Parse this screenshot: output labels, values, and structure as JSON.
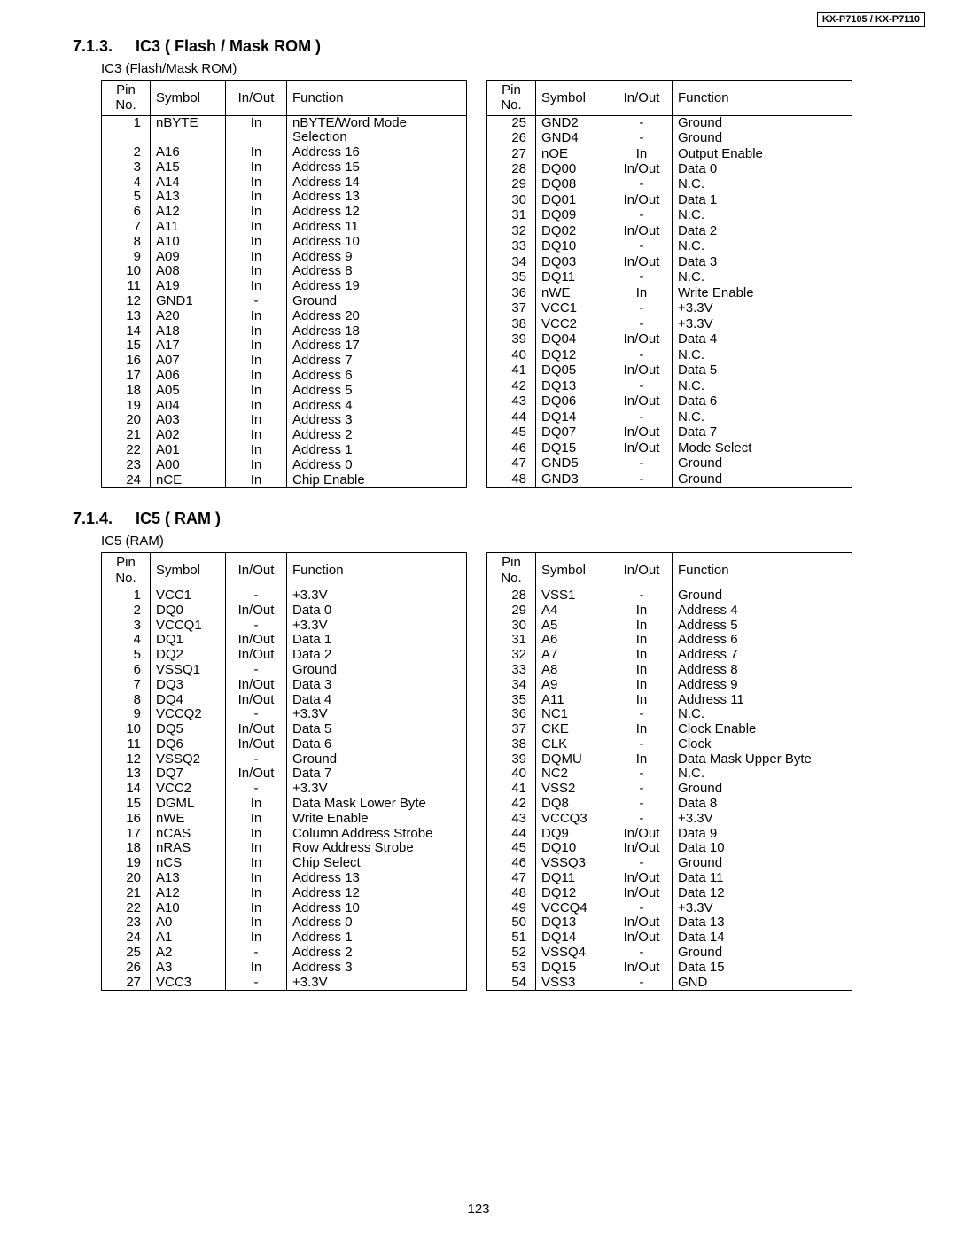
{
  "header_box": "KX-P7105 / KX-P7110",
  "page_number": "123",
  "section1": {
    "number": "7.1.3.",
    "title": "IC3 ( Flash / Mask ROM )",
    "sublabel": "IC3 (Flash/Mask ROM)",
    "headers": {
      "pin": "Pin\nNo.",
      "symbol": "Symbol",
      "inout": "In/Out",
      "func": "Function"
    },
    "left": [
      {
        "pin": "1",
        "symbol": "nBYTE",
        "inout": "In",
        "func": "nBYTE/Word Mode Selection"
      },
      {
        "pin": "2",
        "symbol": "A16",
        "inout": "In",
        "func": "Address 16"
      },
      {
        "pin": "3",
        "symbol": "A15",
        "inout": "In",
        "func": "Address 15"
      },
      {
        "pin": "4",
        "symbol": "A14",
        "inout": "In",
        "func": "Address 14"
      },
      {
        "pin": "5",
        "symbol": "A13",
        "inout": "In",
        "func": "Address 13"
      },
      {
        "pin": "6",
        "symbol": "A12",
        "inout": "In",
        "func": "Address 12"
      },
      {
        "pin": "7",
        "symbol": "A11",
        "inout": "In",
        "func": "Address 11"
      },
      {
        "pin": "8",
        "symbol": "A10",
        "inout": "In",
        "func": "Address 10"
      },
      {
        "pin": "9",
        "symbol": "A09",
        "inout": "In",
        "func": "Address 9"
      },
      {
        "pin": "10",
        "symbol": "A08",
        "inout": "In",
        "func": "Address 8"
      },
      {
        "pin": "11",
        "symbol": "A19",
        "inout": "In",
        "func": "Address 19"
      },
      {
        "pin": "12",
        "symbol": "GND1",
        "inout": "-",
        "func": "Ground"
      },
      {
        "pin": "13",
        "symbol": "A20",
        "inout": "In",
        "func": "Address 20"
      },
      {
        "pin": "14",
        "symbol": "A18",
        "inout": "In",
        "func": "Address 18"
      },
      {
        "pin": "15",
        "symbol": "A17",
        "inout": "In",
        "func": "Address 17"
      },
      {
        "pin": "16",
        "symbol": "A07",
        "inout": "In",
        "func": "Address 7"
      },
      {
        "pin": "17",
        "symbol": "A06",
        "inout": "In",
        "func": "Address 6"
      },
      {
        "pin": "18",
        "symbol": "A05",
        "inout": "In",
        "func": "Address 5"
      },
      {
        "pin": "19",
        "symbol": "A04",
        "inout": "In",
        "func": "Address 4"
      },
      {
        "pin": "20",
        "symbol": "A03",
        "inout": "In",
        "func": "Address 3"
      },
      {
        "pin": "21",
        "symbol": "A02",
        "inout": "In",
        "func": "Address 2"
      },
      {
        "pin": "22",
        "symbol": "A01",
        "inout": "In",
        "func": "Address 1"
      },
      {
        "pin": "23",
        "symbol": "A00",
        "inout": "In",
        "func": "Address 0"
      },
      {
        "pin": "24",
        "symbol": "nCE",
        "inout": "In",
        "func": "Chip Enable"
      }
    ],
    "right": [
      {
        "pin": "25",
        "symbol": "GND2",
        "inout": "-",
        "func": "Ground"
      },
      {
        "pin": "26",
        "symbol": "GND4",
        "inout": "-",
        "func": "Ground"
      },
      {
        "pin": "27",
        "symbol": "nOE",
        "inout": "In",
        "func": "Output Enable"
      },
      {
        "pin": "28",
        "symbol": "DQ00",
        "inout": "In/Out",
        "func": "Data 0"
      },
      {
        "pin": "29",
        "symbol": "DQ08",
        "inout": "-",
        "func": "N.C."
      },
      {
        "pin": "30",
        "symbol": "DQ01",
        "inout": "In/Out",
        "func": "Data 1"
      },
      {
        "pin": "31",
        "symbol": "DQ09",
        "inout": "-",
        "func": "N.C."
      },
      {
        "pin": "32",
        "symbol": "DQ02",
        "inout": "In/Out",
        "func": "Data 2"
      },
      {
        "pin": "33",
        "symbol": "DQ10",
        "inout": "-",
        "func": "N.C."
      },
      {
        "pin": "34",
        "symbol": "DQ03",
        "inout": "In/Out",
        "func": "Data 3"
      },
      {
        "pin": "35",
        "symbol": "DQ11",
        "inout": "-",
        "func": "N.C."
      },
      {
        "pin": "36",
        "symbol": "nWE",
        "inout": "In",
        "func": "Write Enable"
      },
      {
        "pin": "37",
        "symbol": "VCC1",
        "inout": "-",
        "func": "+3.3V"
      },
      {
        "pin": "38",
        "symbol": "VCC2",
        "inout": "-",
        "func": "+3.3V"
      },
      {
        "pin": "39",
        "symbol": "DQ04",
        "inout": "In/Out",
        "func": "Data 4"
      },
      {
        "pin": "40",
        "symbol": "DQ12",
        "inout": "-",
        "func": "N.C."
      },
      {
        "pin": "41",
        "symbol": "DQ05",
        "inout": "In/Out",
        "func": "Data 5"
      },
      {
        "pin": "42",
        "symbol": "DQ13",
        "inout": "-",
        "func": "N.C."
      },
      {
        "pin": "43",
        "symbol": "DQ06",
        "inout": "In/Out",
        "func": "Data 6"
      },
      {
        "pin": "44",
        "symbol": "DQ14",
        "inout": "-",
        "func": "N.C."
      },
      {
        "pin": "45",
        "symbol": "DQ07",
        "inout": "In/Out",
        "func": "Data 7"
      },
      {
        "pin": "46",
        "symbol": "DQ15",
        "inout": "In/Out",
        "func": "Mode Select"
      },
      {
        "pin": "47",
        "symbol": "GND5",
        "inout": "-",
        "func": "Ground"
      },
      {
        "pin": "48",
        "symbol": "GND3",
        "inout": "-",
        "func": "Ground"
      }
    ]
  },
  "section2": {
    "number": "7.1.4.",
    "title": "IC5 ( RAM )",
    "sublabel": "IC5 (RAM)",
    "headers": {
      "pin": "Pin\nNo.",
      "symbol": "Symbol",
      "inout": "In/Out",
      "func": "Function"
    },
    "left": [
      {
        "pin": "1",
        "symbol": "VCC1",
        "inout": "-",
        "func": "+3.3V"
      },
      {
        "pin": "2",
        "symbol": "DQ0",
        "inout": "In/Out",
        "func": "Data 0"
      },
      {
        "pin": "3",
        "symbol": "VCCQ1",
        "inout": "-",
        "func": "+3.3V"
      },
      {
        "pin": "4",
        "symbol": "DQ1",
        "inout": "In/Out",
        "func": "Data 1"
      },
      {
        "pin": "5",
        "symbol": "DQ2",
        "inout": "In/Out",
        "func": "Data 2"
      },
      {
        "pin": "6",
        "symbol": "VSSQ1",
        "inout": "-",
        "func": "Ground"
      },
      {
        "pin": "7",
        "symbol": "DQ3",
        "inout": "In/Out",
        "func": "Data 3"
      },
      {
        "pin": "8",
        "symbol": "DQ4",
        "inout": "In/Out",
        "func": "Data 4"
      },
      {
        "pin": "9",
        "symbol": "VCCQ2",
        "inout": "-",
        "func": "+3.3V"
      },
      {
        "pin": "10",
        "symbol": "DQ5",
        "inout": "In/Out",
        "func": "Data 5"
      },
      {
        "pin": "11",
        "symbol": "DQ6",
        "inout": "In/Out",
        "func": "Data 6"
      },
      {
        "pin": "12",
        "symbol": "VSSQ2",
        "inout": "-",
        "func": "Ground"
      },
      {
        "pin": "13",
        "symbol": "DQ7",
        "inout": "In/Out",
        "func": "Data 7"
      },
      {
        "pin": "14",
        "symbol": "VCC2",
        "inout": "-",
        "func": "+3.3V"
      },
      {
        "pin": "15",
        "symbol": "DGML",
        "inout": "In",
        "func": "Data Mask Lower Byte"
      },
      {
        "pin": "16",
        "symbol": "nWE",
        "inout": "In",
        "func": "Write Enable"
      },
      {
        "pin": "17",
        "symbol": "nCAS",
        "inout": "In",
        "func": "Column Address Strobe"
      },
      {
        "pin": "18",
        "symbol": "nRAS",
        "inout": "In",
        "func": "Row Address Strobe"
      },
      {
        "pin": "19",
        "symbol": "nCS",
        "inout": "In",
        "func": "Chip Select"
      },
      {
        "pin": "20",
        "symbol": "A13",
        "inout": "In",
        "func": "Address 13"
      },
      {
        "pin": "21",
        "symbol": "A12",
        "inout": "In",
        "func": "Address 12"
      },
      {
        "pin": "22",
        "symbol": "A10",
        "inout": "In",
        "func": "Address 10"
      },
      {
        "pin": "23",
        "symbol": "A0",
        "inout": "In",
        "func": "Address 0"
      },
      {
        "pin": "24",
        "symbol": "A1",
        "inout": "In",
        "func": "Address 1"
      },
      {
        "pin": "25",
        "symbol": "A2",
        "inout": "-",
        "func": "Address 2"
      },
      {
        "pin": "26",
        "symbol": "A3",
        "inout": "In",
        "func": "Address 3"
      },
      {
        "pin": "27",
        "symbol": "VCC3",
        "inout": "-",
        "func": "+3.3V"
      }
    ],
    "right": [
      {
        "pin": "28",
        "symbol": "VSS1",
        "inout": "-",
        "func": "Ground"
      },
      {
        "pin": "29",
        "symbol": "A4",
        "inout": "In",
        "func": "Address 4"
      },
      {
        "pin": "30",
        "symbol": "A5",
        "inout": "In",
        "func": "Address 5"
      },
      {
        "pin": "31",
        "symbol": "A6",
        "inout": "In",
        "func": "Address 6"
      },
      {
        "pin": "32",
        "symbol": "A7",
        "inout": "In",
        "func": "Address 7"
      },
      {
        "pin": "33",
        "symbol": "A8",
        "inout": "In",
        "func": "Address 8"
      },
      {
        "pin": "34",
        "symbol": "A9",
        "inout": "In",
        "func": "Address 9"
      },
      {
        "pin": "35",
        "symbol": "A11",
        "inout": "In",
        "func": "Address 11"
      },
      {
        "pin": "36",
        "symbol": "NC1",
        "inout": "-",
        "func": "N.C."
      },
      {
        "pin": "37",
        "symbol": "CKE",
        "inout": "In",
        "func": "Clock Enable"
      },
      {
        "pin": "38",
        "symbol": "CLK",
        "inout": "-",
        "func": "Clock"
      },
      {
        "pin": "39",
        "symbol": "DQMU",
        "inout": "In",
        "func": "Data Mask Upper Byte"
      },
      {
        "pin": "40",
        "symbol": "NC2",
        "inout": "-",
        "func": "N.C."
      },
      {
        "pin": "41",
        "symbol": "VSS2",
        "inout": "-",
        "func": "Ground"
      },
      {
        "pin": "42",
        "symbol": "DQ8",
        "inout": "-",
        "func": "Data 8"
      },
      {
        "pin": "43",
        "symbol": "VCCQ3",
        "inout": "-",
        "func": "+3.3V"
      },
      {
        "pin": "44",
        "symbol": "DQ9",
        "inout": "In/Out",
        "func": "Data 9"
      },
      {
        "pin": "45",
        "symbol": "DQ10",
        "inout": "In/Out",
        "func": "Data 10"
      },
      {
        "pin": "46",
        "symbol": "VSSQ3",
        "inout": "-",
        "func": "Ground"
      },
      {
        "pin": "47",
        "symbol": "DQ11",
        "inout": "In/Out",
        "func": "Data 11"
      },
      {
        "pin": "48",
        "symbol": "DQ12",
        "inout": "In/Out",
        "func": "Data 12"
      },
      {
        "pin": "49",
        "symbol": "VCCQ4",
        "inout": "-",
        "func": "+3.3V"
      },
      {
        "pin": "50",
        "symbol": "DQ13",
        "inout": "In/Out",
        "func": "Data 13"
      },
      {
        "pin": "51",
        "symbol": "DQ14",
        "inout": "In/Out",
        "func": "Data 14"
      },
      {
        "pin": "52",
        "symbol": "VSSQ4",
        "inout": "-",
        "func": "Ground"
      },
      {
        "pin": "53",
        "symbol": "DQ15",
        "inout": "In/Out",
        "func": "Data 15"
      },
      {
        "pin": "54",
        "symbol": "VSS3",
        "inout": "-",
        "func": "GND"
      }
    ]
  }
}
